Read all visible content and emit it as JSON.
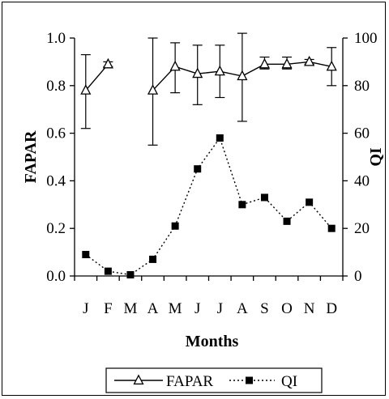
{
  "chart_data": {
    "type": "line",
    "categories": [
      "J",
      "F",
      "M",
      "A",
      "M",
      "J",
      "J",
      "A",
      "S",
      "O",
      "N",
      "D"
    ],
    "xlabel": "Months",
    "ylabel_left": "FAPAR",
    "ylabel_right": "QI",
    "ylim_left": [
      0,
      1.0
    ],
    "ylim_right": [
      0,
      100
    ],
    "yticks_left": [
      "0.0",
      "0.2",
      "0.4",
      "0.6",
      "0.8",
      "1.0"
    ],
    "yticks_right": [
      "0",
      "20",
      "40",
      "60",
      "80",
      "100"
    ],
    "grid": false,
    "legend_position": "bottom",
    "series": [
      {
        "name": "FAPAR",
        "axis": "left",
        "style": "solid line, open triangle markers, error bars",
        "segments": [
          [
            0,
            1
          ],
          [
            3,
            4,
            5,
            6,
            7,
            8,
            9,
            10,
            11
          ]
        ],
        "values": [
          0.78,
          0.89,
          null,
          0.78,
          0.88,
          0.85,
          0.86,
          0.84,
          0.89,
          0.89,
          0.9,
          0.88
        ],
        "error_low": [
          0.62,
          0.88,
          null,
          0.55,
          0.77,
          0.72,
          0.75,
          0.65,
          0.87,
          0.87,
          0.89,
          0.8
        ],
        "error_high": [
          0.93,
          0.9,
          null,
          1.0,
          0.98,
          0.97,
          0.97,
          1.02,
          0.92,
          0.92,
          0.91,
          0.96
        ]
      },
      {
        "name": "QI",
        "axis": "right",
        "style": "dotted line, filled square markers",
        "values": [
          9,
          2,
          0.5,
          7,
          21,
          45,
          58,
          30,
          33,
          23,
          31,
          20
        ]
      }
    ],
    "colors": {
      "line": "#000000",
      "background": "#ffffff"
    }
  }
}
